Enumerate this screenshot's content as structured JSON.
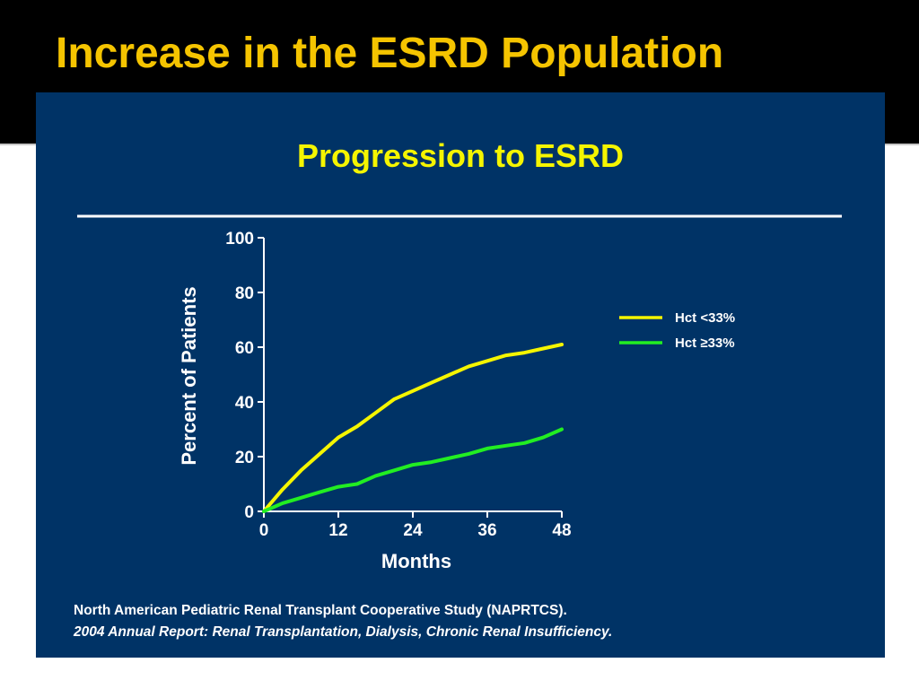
{
  "slide": {
    "title": "Increase in the ESRD Population"
  },
  "colors": {
    "band": "#000000",
    "title": "#f5c400",
    "panel": "#003366",
    "chart_title": "#f5f500",
    "axis": "#ffffff",
    "series_low": "#f5f500",
    "series_high": "#22ee22"
  },
  "chart_data": {
    "type": "line",
    "title": "Progression to ESRD",
    "xlabel": "Months",
    "ylabel": "Percent of Patients",
    "xlim": [
      0,
      48
    ],
    "ylim": [
      0,
      100
    ],
    "xticks": [
      0,
      12,
      24,
      36,
      48
    ],
    "yticks": [
      0,
      20,
      40,
      60,
      80,
      100
    ],
    "grid": false,
    "legend_position": "right",
    "series": [
      {
        "name": "Hct <33%",
        "color": "#f5f500",
        "x": [
          0,
          3,
          6,
          9,
          12,
          15,
          18,
          21,
          24,
          27,
          30,
          33,
          36,
          39,
          42,
          45,
          48
        ],
        "y": [
          0,
          8,
          15,
          21,
          27,
          31,
          36,
          41,
          44,
          47,
          50,
          53,
          55,
          57,
          58,
          59.5,
          61
        ]
      },
      {
        "name": "Hct ≥33%",
        "color": "#22ee22",
        "x": [
          0,
          3,
          6,
          9,
          12,
          15,
          18,
          21,
          24,
          27,
          30,
          33,
          36,
          39,
          42,
          45,
          48
        ],
        "y": [
          0,
          3,
          5,
          7,
          9,
          10,
          13,
          15,
          17,
          18,
          19.5,
          21,
          23,
          24,
          25,
          27,
          30
        ]
      }
    ],
    "source": {
      "line1": "North American Pediatric Renal Transplant Cooperative Study (NAPRTCS).",
      "line2": "2004 Annual Report: Renal Transplantation, Dialysis, Chronic Renal Insufficiency."
    }
  }
}
